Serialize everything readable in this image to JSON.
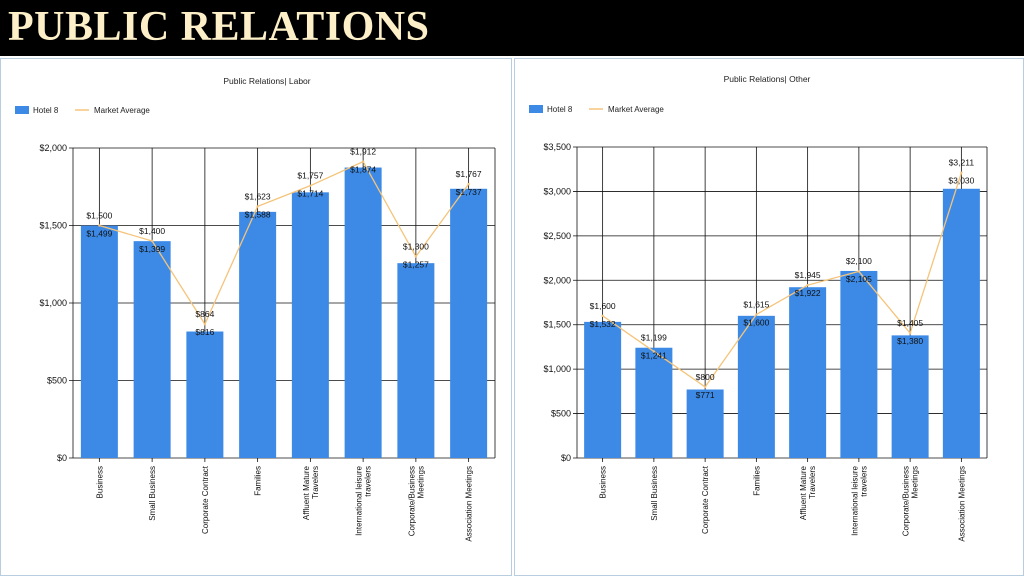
{
  "header": {
    "title": "PUBLIC RELATIONS"
  },
  "colors": {
    "bar": "#3d8ae6",
    "line": "#f5c47a",
    "header_bg": "#000000",
    "header_text": "#fdf0c8"
  },
  "chart_data": [
    {
      "type": "bar",
      "title": "Public Relations| Labor",
      "legend": {
        "position": "top-left",
        "entries": [
          "Hotel 8",
          "Market Average"
        ]
      },
      "categories": [
        "Business",
        "Small Business",
        "Corporate Contract",
        "Families",
        "Affluent Mature Travelers",
        "International leisure travelers",
        "Corporate/Business Meetings",
        "Association Meetings"
      ],
      "ylim": [
        0,
        2000
      ],
      "yticks": [
        0,
        500,
        1000,
        1500,
        2000
      ],
      "ytick_labels": [
        "$0",
        "$500",
        "$1,000",
        "$1,500",
        "$2,000"
      ],
      "grid": true,
      "series": [
        {
          "name": "Hotel 8",
          "kind": "bar",
          "values": [
            1499,
            1399,
            816,
            1588,
            1714,
            1874,
            1257,
            1737
          ],
          "labels": [
            "$1,499",
            "$1,399",
            "$816",
            "$1,588",
            "$1,714",
            "$1,874",
            "$1,257",
            "$1,737"
          ]
        },
        {
          "name": "Market Average",
          "kind": "line",
          "values": [
            1500,
            1400,
            864,
            1623,
            1757,
            1912,
            1300,
            1767
          ],
          "labels": [
            "$1,500",
            "$1,400",
            "$864",
            "$1,623",
            "$1,757",
            "$1,912",
            "$1,300",
            "$1,767"
          ]
        }
      ]
    },
    {
      "type": "bar",
      "title": "Public Relations| Other",
      "legend": {
        "position": "top-left",
        "entries": [
          "Hotel 8",
          "Market Average"
        ]
      },
      "categories": [
        "Business",
        "Small Business",
        "Corporate Contract",
        "Families",
        "Affluent Mature Travelers",
        "International leisure travelers",
        "Corporate/Business Meetings",
        "Association Meetings"
      ],
      "ylim": [
        0,
        3500
      ],
      "yticks": [
        0,
        500,
        1000,
        1500,
        2000,
        2500,
        3000,
        3500
      ],
      "ytick_labels": [
        "$0",
        "$500",
        "$1,000",
        "$1,500",
        "$2,000",
        "$2,500",
        "$3,000",
        "$3,500"
      ],
      "grid": true,
      "series": [
        {
          "name": "Hotel 8",
          "kind": "bar",
          "values": [
            1532,
            1241,
            771,
            1600,
            1922,
            2105,
            1380,
            3030
          ],
          "labels": [
            "$1,532",
            "$1,241",
            "$771",
            "$1,600",
            "$1,922",
            "$2,105",
            "$1,380",
            "$3,030"
          ]
        },
        {
          "name": "Market Average",
          "kind": "line",
          "values": [
            1600,
            1199,
            800,
            1615,
            1945,
            2100,
            1405,
            3211
          ],
          "labels": [
            "$1,600",
            "$1,199",
            "$800",
            "$1,615",
            "$1,945",
            "$2,100",
            "$1,405",
            "$3,211"
          ]
        }
      ]
    }
  ]
}
